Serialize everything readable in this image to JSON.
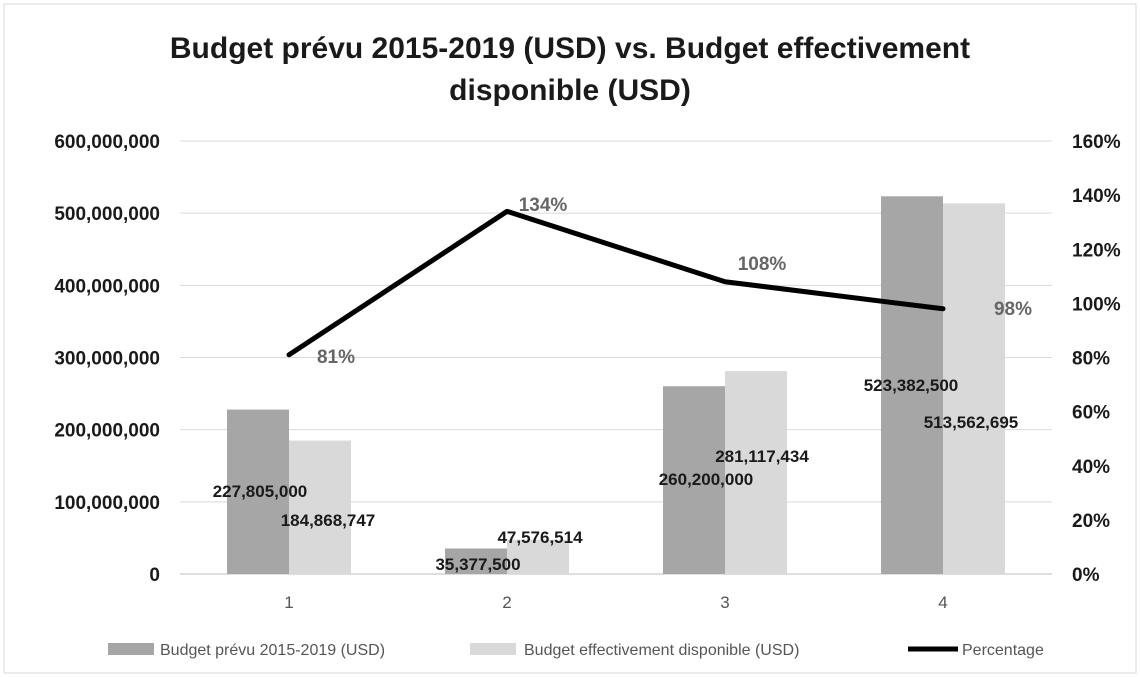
{
  "chart_data": {
    "type": "bar",
    "title_lines": [
      "Budget prévu 2015-2019 (USD) vs. Budget effectivement",
      "disponible (USD)"
    ],
    "categories": [
      "1",
      "2",
      "3",
      "4"
    ],
    "series": [
      {
        "name": "Budget prévu 2015-2019 (USD)",
        "type": "bar",
        "axis": "left",
        "values": [
          227805000,
          35377500,
          260200000,
          523382500
        ],
        "labels": [
          "227,805,000",
          "35,377,500",
          "260,200,000",
          "523,382,500"
        ],
        "color": "#a6a6a6"
      },
      {
        "name": "Budget effectivement disponible (USD)",
        "type": "bar",
        "axis": "left",
        "values": [
          184868747,
          47576514,
          281117434,
          513562695
        ],
        "labels": [
          "184,868,747",
          "47,576,514",
          "281,117,434",
          "513,562,695"
        ],
        "color": "#d9d9d9"
      },
      {
        "name": "Percentage",
        "type": "line",
        "axis": "right",
        "values": [
          81,
          134,
          108,
          98
        ],
        "labels": [
          "81%",
          "134%",
          "108%",
          "98%"
        ],
        "color": "#000000"
      }
    ],
    "y_left": {
      "min": 0,
      "max": 600000000,
      "ticks": [
        0,
        100000000,
        200000000,
        300000000,
        400000000,
        500000000,
        600000000
      ],
      "tick_labels": [
        "0",
        "100,000,000",
        "200,000,000",
        "300,000,000",
        "400,000,000",
        "500,000,000",
        "600,000,000"
      ]
    },
    "y_right": {
      "min": 0,
      "max": 160,
      "ticks": [
        0,
        20,
        40,
        60,
        80,
        100,
        120,
        140,
        160
      ],
      "tick_labels": [
        "0%",
        "20%",
        "40%",
        "60%",
        "80%",
        "100%",
        "120%",
        "140%",
        "160%"
      ]
    },
    "grid": true,
    "legend_position": "bottom",
    "gridline_color": "#d9d9d9"
  }
}
